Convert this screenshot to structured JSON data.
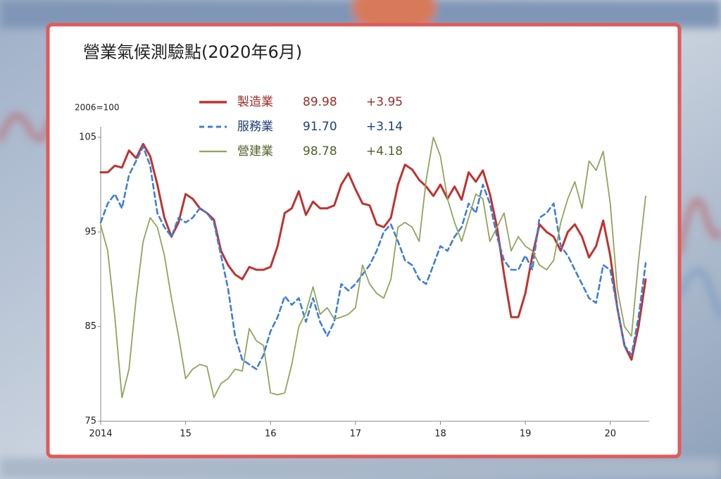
{
  "chart_data": {
    "type": "line",
    "title": "營業氣候測驗點(2020年6月)",
    "y_label": "2006=100",
    "x": [
      2014,
      2014.083,
      2014.167,
      2014.25,
      2014.333,
      2014.417,
      2014.5,
      2014.583,
      2014.667,
      2014.75,
      2014.833,
      2014.917,
      2015,
      2015.083,
      2015.167,
      2015.25,
      2015.333,
      2015.417,
      2015.5,
      2015.583,
      2015.667,
      2015.75,
      2015.833,
      2015.917,
      2016,
      2016.083,
      2016.167,
      2016.25,
      2016.333,
      2016.417,
      2016.5,
      2016.583,
      2016.667,
      2016.75,
      2016.833,
      2016.917,
      2017,
      2017.083,
      2017.167,
      2017.25,
      2017.333,
      2017.417,
      2017.5,
      2017.583,
      2017.667,
      2017.75,
      2017.833,
      2017.917,
      2018,
      2018.083,
      2018.167,
      2018.25,
      2018.333,
      2018.417,
      2018.5,
      2018.583,
      2018.667,
      2018.75,
      2018.833,
      2018.917,
      2019,
      2019.083,
      2019.167,
      2019.25,
      2019.333,
      2019.417,
      2019.5,
      2019.583,
      2019.667,
      2019.75,
      2019.833,
      2019.917,
      2020,
      2020.083,
      2020.167,
      2020.25,
      2020.333,
      2020.417
    ],
    "series": [
      {
        "name": "製造業",
        "color": "#c0322f",
        "text_color": "#9b2b2b",
        "dashed": false,
        "width": 3,
        "latest": {
          "value": 89.98,
          "label": "89.98"
        },
        "change": {
          "value": 3.95,
          "label": "+3.95"
        },
        "values": [
          101.3,
          101.3,
          102,
          101.8,
          103.6,
          102.8,
          104.3,
          103,
          100,
          96.5,
          94.5,
          96,
          99,
          98.5,
          97.5,
          97,
          96.3,
          93,
          91.5,
          90.5,
          90,
          91.3,
          91,
          91,
          91.3,
          93.5,
          97,
          97.5,
          99.3,
          96.8,
          98.2,
          97.5,
          97.5,
          97.8,
          100,
          101.2,
          99.5,
          98,
          97.8,
          95.8,
          95.5,
          96.5,
          100,
          102.1,
          101.6,
          100.5,
          99.8,
          98.8,
          100,
          98.5,
          99.8,
          98.4,
          101.3,
          100.3,
          101.5,
          99,
          95.5,
          90.5,
          86,
          86,
          88.5,
          92.5,
          95.8,
          95,
          94.5,
          93,
          95,
          95.8,
          94.5,
          92.3,
          93.5,
          96.2,
          92.5,
          87,
          83,
          81.5,
          85,
          89.98
        ]
      },
      {
        "name": "服務業",
        "color": "#3d7fd6",
        "text_color": "#1f3f73",
        "dashed": true,
        "width": 2.6,
        "latest": {
          "value": 91.7,
          "label": "91.70"
        },
        "change": {
          "value": 3.14,
          "label": "+3.14"
        },
        "values": [
          96,
          98,
          99,
          97.5,
          101,
          102.5,
          104,
          102,
          97,
          95.5,
          94.5,
          96.5,
          96,
          96.5,
          97.5,
          97,
          96,
          92.5,
          89,
          84,
          81.5,
          81,
          80.5,
          82,
          84.5,
          86,
          88.2,
          87.3,
          88,
          85.5,
          88,
          85.5,
          84,
          85.5,
          89.5,
          88.8,
          89.5,
          90.5,
          91.5,
          93,
          95,
          95.8,
          94,
          92,
          91.5,
          90,
          89.5,
          91.5,
          93.5,
          93,
          94.5,
          95.5,
          98,
          97,
          100,
          98,
          94.5,
          92,
          91,
          91,
          92.5,
          91,
          96.5,
          97,
          98,
          93.5,
          92.5,
          91,
          89.5,
          88,
          87.5,
          91.5,
          91,
          87,
          83,
          82,
          86,
          91.7
        ]
      },
      {
        "name": "營建業",
        "color": "#8ea55c",
        "text_color": "#4f6228",
        "dashed": false,
        "width": 1.8,
        "latest": {
          "value": 98.78,
          "label": "98.78"
        },
        "change": {
          "value": 4.18,
          "label": "+4.18"
        },
        "values": [
          95.7,
          93,
          86,
          77.5,
          80.5,
          88,
          94,
          96.5,
          95.5,
          92.5,
          88,
          84,
          79.5,
          80.5,
          81,
          80.8,
          77.5,
          79,
          79.5,
          80.5,
          80.3,
          84.8,
          83.5,
          83,
          78,
          77.8,
          78,
          81,
          85,
          86.5,
          89.2,
          86.3,
          87,
          85.8,
          86,
          86.3,
          87,
          91.5,
          89.5,
          88.5,
          88,
          90,
          95.5,
          96,
          95.5,
          94,
          100.5,
          105,
          103,
          98.5,
          96,
          94,
          96.5,
          99,
          98.5,
          94,
          95.5,
          97,
          93,
          94.5,
          93.5,
          93,
          91.5,
          91,
          92,
          96,
          98.5,
          100.3,
          97.5,
          102.5,
          101.5,
          103.5,
          98,
          89,
          85,
          84,
          92,
          98.78
        ]
      }
    ],
    "xlim": [
      2014,
      2020.45
    ],
    "xticks": [
      {
        "value": 2014,
        "label": "2014"
      },
      {
        "value": 2015,
        "label": "15"
      },
      {
        "value": 2016,
        "label": "16"
      },
      {
        "value": 2017,
        "label": "17"
      },
      {
        "value": 2018,
        "label": "18"
      },
      {
        "value": 2019,
        "label": "19"
      },
      {
        "value": 2020,
        "label": "20"
      }
    ],
    "ylim": [
      75,
      107
    ],
    "yticks": [
      75,
      85,
      95,
      105
    ],
    "grid": false
  }
}
